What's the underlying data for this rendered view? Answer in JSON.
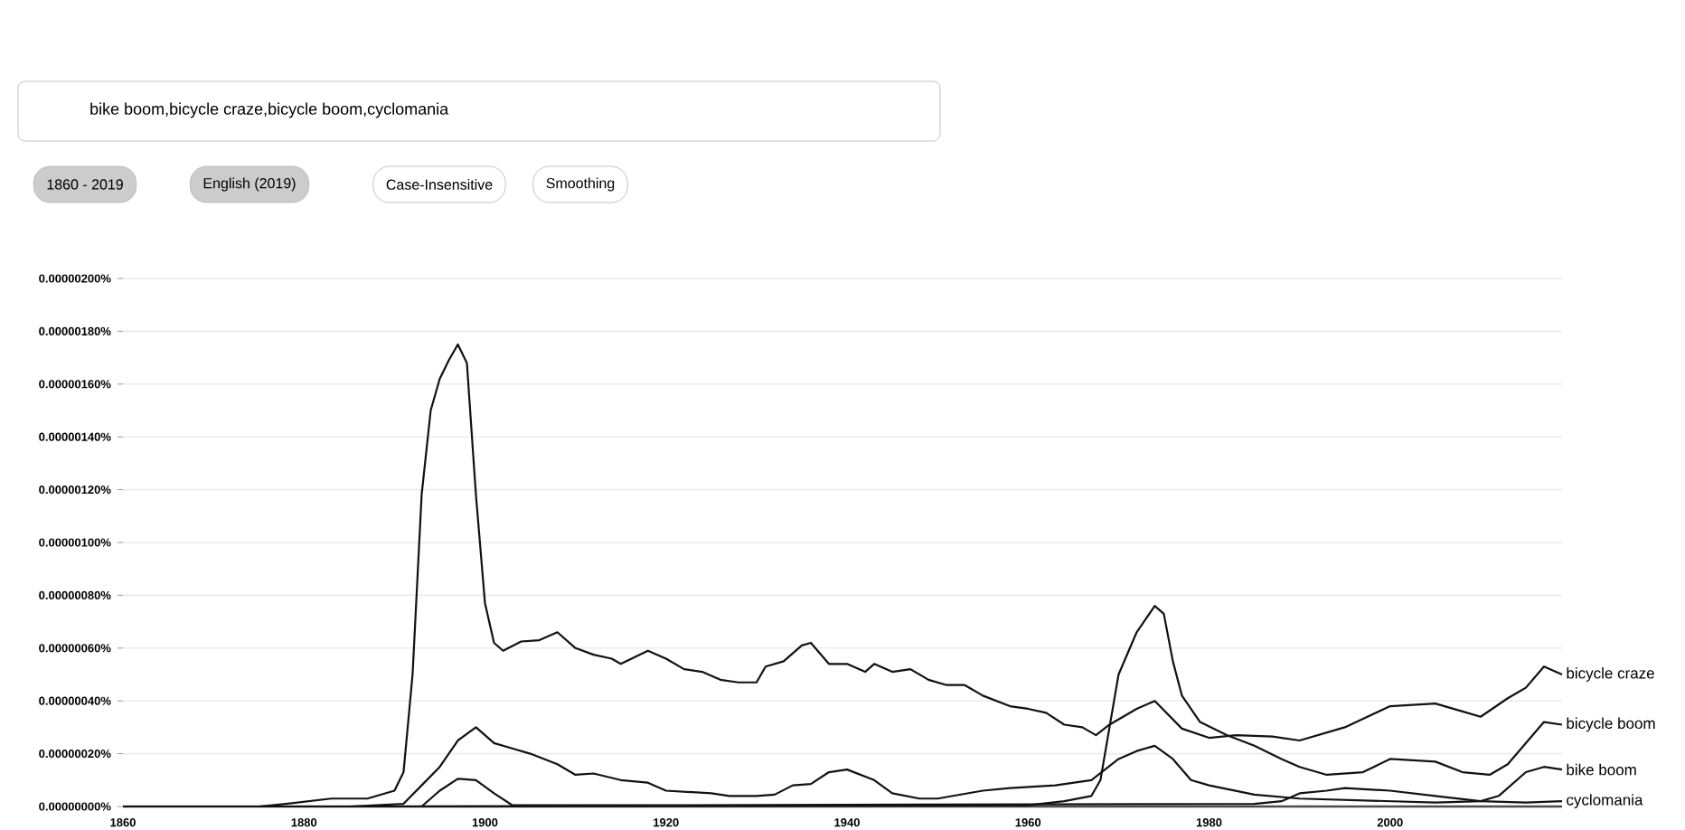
{
  "chart_data": {
    "type": "line",
    "annotations": [
      "bike boom,bicycle craze,bicycle boom,cyclomania",
      "1860 - 2019",
      "English (2019)",
      "Case-Insensitive",
      "Smoothing"
    ],
    "xlim": [
      1860,
      2019
    ],
    "xticks": [
      1860,
      1880,
      1900,
      1920,
      1940,
      1960,
      1980,
      2000
    ],
    "ylim": [
      0,
      2e-06
    ],
    "yticks": [
      {
        "value": 0,
        "label": "0.00000000%"
      },
      {
        "value": 2e-07,
        "label": "0.00000020%"
      },
      {
        "value": 4e-07,
        "label": "0.00000040%"
      },
      {
        "value": 6e-07,
        "label": "0.00000060%"
      },
      {
        "value": 8e-07,
        "label": "0.00000080%"
      },
      {
        "value": 1e-06,
        "label": "0.00000100%"
      },
      {
        "value": 1.2e-06,
        "label": "0.00000120%"
      },
      {
        "value": 1.4e-06,
        "label": "0.00000140%"
      },
      {
        "value": 1.6e-06,
        "label": "0.00000160%"
      },
      {
        "value": 1.8e-06,
        "label": "0.00000180%"
      },
      {
        "value": 2e-06,
        "label": "0.00000200%"
      }
    ],
    "grid": "y",
    "series": [
      {
        "name": "bicycle craze",
        "color": "#111111",
        "x": [
          1860,
          1875,
          1878,
          1883,
          1887,
          1890,
          1891,
          1892,
          1893,
          1894,
          1895,
          1896,
          1897,
          1898,
          1899,
          1900,
          1901,
          1902,
          1904,
          1906,
          1908,
          1910,
          1912,
          1914,
          1915,
          1918,
          1920,
          1922,
          1924,
          1926,
          1928,
          1930,
          1931,
          1933,
          1935,
          1936,
          1938,
          1940,
          1942,
          1943,
          1945,
          1947,
          1949,
          1951,
          1953,
          1955,
          1958,
          1960,
          1962,
          1964,
          1966,
          1967.5,
          1969,
          1972,
          1974,
          1977,
          1980,
          1983,
          1987,
          1990,
          1995,
          2000,
          2005,
          2008,
          2010,
          2013,
          2015,
          2017,
          2019
        ],
        "values": [
          0,
          0,
          1e-08,
          3e-08,
          3e-08,
          6e-08,
          1.3e-07,
          5e-07,
          1.18e-06,
          1.5e-06,
          1.62e-06,
          1.69e-06,
          1.75e-06,
          1.68e-06,
          1.18e-06,
          7.7e-07,
          6.2e-07,
          5.9e-07,
          6.25e-07,
          6.3e-07,
          6.6e-07,
          6e-07,
          5.75e-07,
          5.6e-07,
          5.4e-07,
          5.9e-07,
          5.6e-07,
          5.2e-07,
          5.1e-07,
          4.8e-07,
          4.7e-07,
          4.7e-07,
          5.3e-07,
          5.5e-07,
          6.1e-07,
          6.2e-07,
          5.4e-07,
          5.4e-07,
          5.1e-07,
          5.4e-07,
          5.1e-07,
          5.2e-07,
          4.8e-07,
          4.6e-07,
          4.6e-07,
          4.2e-07,
          3.8e-07,
          3.7e-07,
          3.55e-07,
          3.1e-07,
          3e-07,
          2.7e-07,
          3.1e-07,
          3.7e-07,
          4e-07,
          2.95e-07,
          2.6e-07,
          2.7e-07,
          2.65e-07,
          2.5e-07,
          3e-07,
          3.8e-07,
          3.9e-07,
          3.6e-07,
          3.4e-07,
          4.1e-07,
          4.5e-07,
          5.3e-07,
          5e-07
        ]
      },
      {
        "name": "bicycle boom",
        "color": "#111111",
        "x": [
          1860,
          1890,
          1960,
          1964,
          1967,
          1968,
          1969,
          1970,
          1972,
          1974,
          1975,
          1976,
          1977,
          1979,
          1982,
          1985,
          1988,
          1990,
          1993,
          1997,
          2000,
          2005,
          2008,
          2011,
          2013,
          2015,
          2017,
          2019
        ],
        "values": [
          0,
          0,
          5e-09,
          2e-08,
          4e-08,
          1e-07,
          3e-07,
          5e-07,
          6.6e-07,
          7.6e-07,
          7.3e-07,
          5.5e-07,
          4.2e-07,
          3.2e-07,
          2.7e-07,
          2.3e-07,
          1.8e-07,
          1.5e-07,
          1.2e-07,
          1.3e-07,
          1.8e-07,
          1.7e-07,
          1.3e-07,
          1.2e-07,
          1.6e-07,
          2.4e-07,
          3.2e-07,
          3.1e-07
        ]
      },
      {
        "name": "bike boom",
        "color": "#111111",
        "x": [
          1860,
          1885,
          1891,
          1893,
          1895,
          1897,
          1899,
          1901,
          1903,
          1905,
          1908,
          1910,
          1912,
          1915,
          1918,
          1920,
          1925,
          1927,
          1930,
          1932,
          1934,
          1936,
          1938,
          1940,
          1943,
          1945,
          1948,
          1950,
          1955,
          1958,
          1963,
          1967,
          1970,
          1972,
          1974,
          1976,
          1978,
          1980,
          1985,
          1990,
          2000,
          2005,
          2010,
          2012,
          2015,
          2017,
          2019
        ],
        "values": [
          0,
          0,
          1e-08,
          8e-08,
          1.5e-07,
          2.5e-07,
          3e-07,
          2.4e-07,
          2.2e-07,
          2e-07,
          1.6e-07,
          1.2e-07,
          1.25e-07,
          1e-07,
          9e-08,
          6e-08,
          5e-08,
          4e-08,
          4e-08,
          4.5e-08,
          8e-08,
          8.5e-08,
          1.3e-07,
          1.4e-07,
          1e-07,
          5e-08,
          3e-08,
          3e-08,
          6e-08,
          7e-08,
          8e-08,
          1e-07,
          1.8e-07,
          2.1e-07,
          2.3e-07,
          1.8e-07,
          1e-07,
          8e-08,
          4.5e-08,
          3e-08,
          2e-08,
          1.5e-08,
          2e-08,
          4e-08,
          1.3e-07,
          1.5e-07,
          1.4e-07
        ]
      },
      {
        "name": "cyclomania",
        "color": "#111111",
        "x": [
          1860,
          1893,
          1895,
          1897,
          1899,
          1901,
          1903,
          1920,
          1985,
          1988,
          1990,
          1993,
          1995,
          2000,
          2005,
          2010,
          2015,
          2019
        ],
        "values": [
          0,
          0,
          6e-08,
          1.05e-07,
          1e-07,
          5e-08,
          5e-09,
          5e-09,
          1e-08,
          2e-08,
          5e-08,
          6e-08,
          7e-08,
          6e-08,
          4e-08,
          2e-08,
          1.5e-08,
          2e-08
        ]
      }
    ]
  }
}
